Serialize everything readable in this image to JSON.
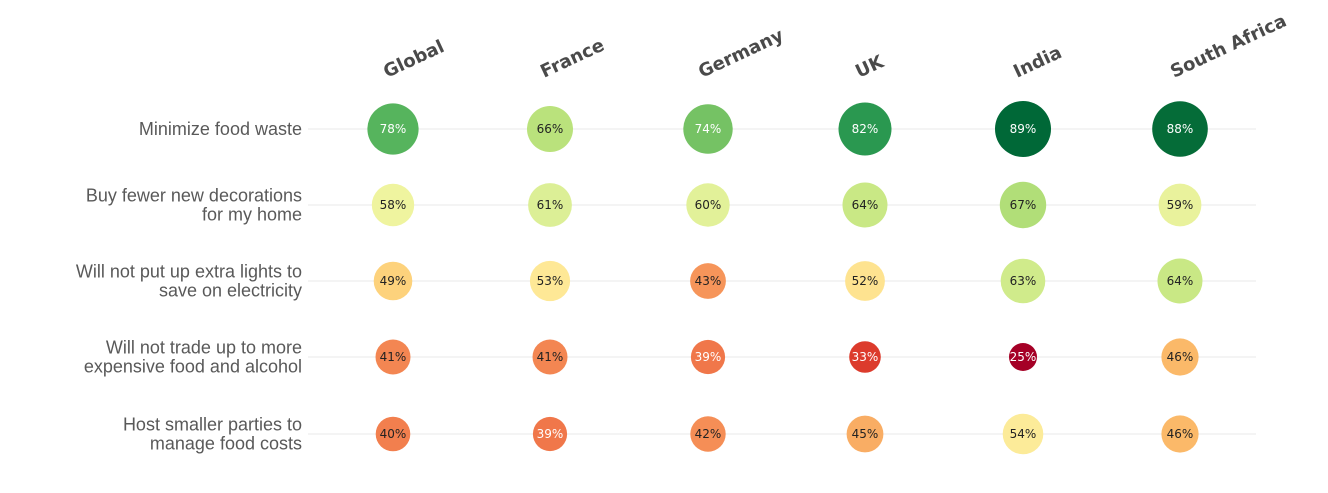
{
  "chart_data": {
    "type": "heatmap",
    "columns": [
      "Global",
      "France",
      "Germany",
      "UK",
      "India",
      "South Africa"
    ],
    "rows": [
      {
        "label_lines": [
          "Minimize food waste"
        ],
        "values": [
          78,
          66,
          74,
          82,
          89,
          88
        ]
      },
      {
        "label_lines": [
          "Buy fewer new decorations",
          "for my home"
        ],
        "values": [
          58,
          61,
          60,
          64,
          67,
          59
        ]
      },
      {
        "label_lines": [
          "Will not put up extra lights to",
          "save on electricity"
        ],
        "values": [
          49,
          53,
          43,
          52,
          63,
          64
        ]
      },
      {
        "label_lines": [
          "Will not trade up to more",
          "expensive food and alcohol"
        ],
        "values": [
          41,
          41,
          39,
          33,
          25,
          46
        ]
      },
      {
        "label_lines": [
          "Host smaller parties to",
          "manage food costs"
        ],
        "values": [
          40,
          39,
          42,
          45,
          54,
          46
        ]
      }
    ],
    "value_suffix": "%",
    "encoding": "circle size and color scale with value (red = low, green = high)",
    "color_scale": {
      "stops": [
        [
          25,
          "#a50026"
        ],
        [
          33,
          "#dc3b2c"
        ],
        [
          39,
          "#f0774a"
        ],
        [
          43,
          "#f6955a"
        ],
        [
          46,
          "#fbb969"
        ],
        [
          49,
          "#fdd27c"
        ],
        [
          53,
          "#fee896"
        ],
        [
          57,
          "#f5f5a2"
        ],
        [
          61,
          "#dcef96"
        ],
        [
          65,
          "#c3e67f"
        ],
        [
          71,
          "#8ccd6a"
        ],
        [
          78,
          "#56b45d"
        ],
        [
          82,
          "#2a9850"
        ],
        [
          87,
          "#0a6f38"
        ],
        [
          89,
          "#006837"
        ]
      ]
    }
  }
}
